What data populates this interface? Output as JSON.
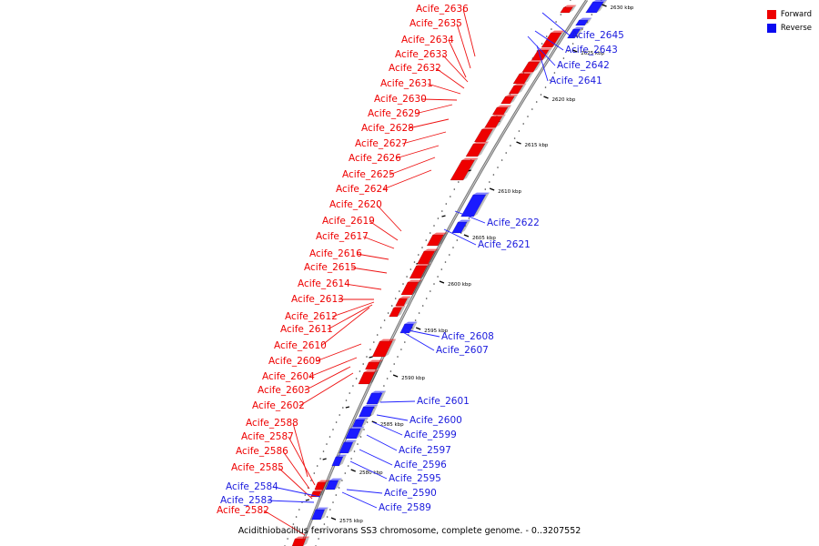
{
  "caption": "Acidithiobacillus ferrivorans SS3 chromosome, complete genome. - 0..3207552",
  "legend": [
    {
      "label": "Forward",
      "color": "#ee0000"
    },
    {
      "label": "Reverse",
      "color": "#0a0af0"
    }
  ],
  "colors": {
    "forward": "#ee0000",
    "reverse": "#1a1aff",
    "backbone": "#999999"
  },
  "kbp_marks": [
    "2575 kbp",
    "2580 kbp",
    "2585 kbp",
    "2590 kbp",
    "2595 kbp",
    "2600 kbp",
    "2605 kbp",
    "2610 kbp",
    "2615 kbp",
    "2620 kbp",
    "2625 kbp",
    "2630 kbp"
  ],
  "forward_genes": [
    "Acife_2636",
    "Acife_2635",
    "Acife_2634",
    "Acife_2633",
    "Acife_2632",
    "Acife_2631",
    "Acife_2630",
    "Acife_2629",
    "Acife_2628",
    "Acife_2627",
    "Acife_2626",
    "Acife_2625",
    "Acife_2624",
    "Acife_2620",
    "Acife_2619",
    "Acife_2617",
    "Acife_2616",
    "Acife_2615",
    "Acife_2614",
    "Acife_2613",
    "Acife_2612",
    "Acife_2611",
    "Acife_2610",
    "Acife_2609",
    "Acife_2604",
    "Acife_2603",
    "Acife_2602",
    "Acife_2588",
    "Acife_2587",
    "Acife_2586",
    "Acife_2585",
    "Acife_2582"
  ],
  "reverse_genes": [
    "Acife_2645",
    "Acife_2643",
    "Acife_2642",
    "Acife_2641",
    "Acife_2622",
    "Acife_2621",
    "Acife_2608",
    "Acife_2607",
    "Acife_2601",
    "Acife_2600",
    "Acife_2599",
    "Acife_2597",
    "Acife_2596",
    "Acife_2595",
    "Acife_2590",
    "Acife_2589",
    "Acife_2584",
    "Acife_2583"
  ]
}
